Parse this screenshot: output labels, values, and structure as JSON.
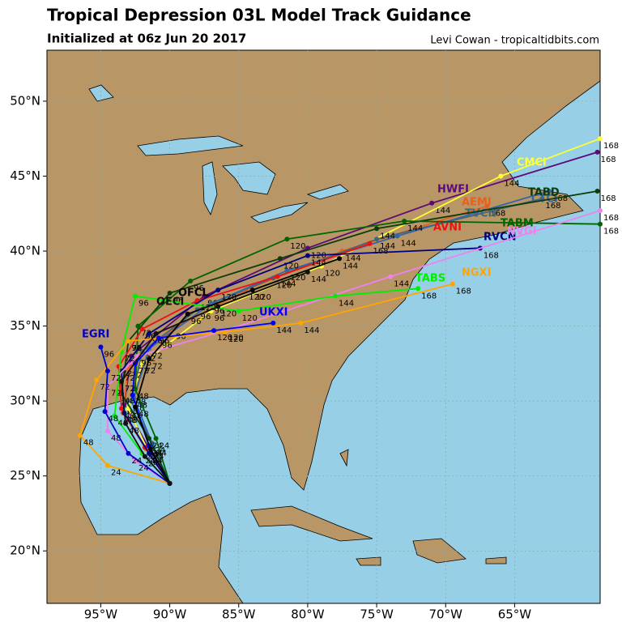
{
  "chart_data": {
    "type": "track-map",
    "title": "Tropical Depression 03L Model Track Guidance",
    "subtitle": "Initialized at 06z Jun 20 2017",
    "credit": "Levi Cowan - tropicaltidbits.com",
    "xlim": [
      -98.9,
      -58.8
    ],
    "ylim": [
      16.5,
      53.4
    ],
    "xticks": [
      {
        "value": -95,
        "label": "95°W"
      },
      {
        "value": -90,
        "label": "90°W"
      },
      {
        "value": -85,
        "label": "85°W"
      },
      {
        "value": -80,
        "label": "80°W"
      },
      {
        "value": -75,
        "label": "75°W"
      },
      {
        "value": -70,
        "label": "70°W"
      },
      {
        "value": -65,
        "label": "65°W"
      }
    ],
    "yticks": [
      {
        "value": 20,
        "label": "20°N"
      },
      {
        "value": 25,
        "label": "25°N"
      },
      {
        "value": 30,
        "label": "30°N"
      },
      {
        "value": 35,
        "label": "35°N"
      },
      {
        "value": 40,
        "label": "40°N"
      },
      {
        "value": 45,
        "label": "45°N"
      },
      {
        "value": 50,
        "label": "50°N"
      }
    ],
    "grid": true,
    "hours": [
      0,
      24,
      48,
      72,
      96,
      120,
      144,
      168
    ],
    "series": [
      {
        "name": "HWFI",
        "color": "#5c0a7a",
        "x": [
          -90,
          -91.6,
          -93.3,
          -92.8,
          -87.5,
          -80,
          -71,
          -59
        ],
        "y": [
          24.5,
          27,
          29.8,
          33,
          37,
          40.2,
          43.2,
          46.6
        ]
      },
      {
        "name": "CMCI",
        "color": "#ffff33",
        "x": [
          -90,
          -91.5,
          -93,
          -92,
          -87,
          -79,
          -66,
          -58.8
        ],
        "y": [
          24.5,
          26.5,
          29.5,
          32.5,
          36,
          39,
          45,
          47.5
        ]
      },
      {
        "name": "AEMI",
        "color": "#e8601c",
        "x": [
          -90,
          -91.7,
          -93.4,
          -93,
          -89.8,
          -84.5,
          -77.5,
          -67
        ],
        "y": [
          24.5,
          26.8,
          29.2,
          32.2,
          34.8,
          37.4,
          40,
          43
        ]
      },
      {
        "name": "TVCN",
        "color": "#446677",
        "x": [
          -90,
          -91.3,
          -92.8,
          -92,
          -88,
          -82.5,
          -75,
          -63
        ],
        "y": [
          24.5,
          27.2,
          30,
          33.3,
          36.1,
          38.2,
          40.8,
          43.5
        ]
      },
      {
        "name": "CTCI",
        "color": "#3366aa",
        "x": [
          -90,
          -91.2,
          -92.6,
          -91.5,
          -87,
          -81.5,
          -73.5,
          -62.5
        ],
        "y": [
          24.5,
          27,
          30.2,
          33.5,
          36.5,
          38.7,
          41,
          44
        ]
      },
      {
        "name": "TABD",
        "color": "#0b3d0b",
        "x": [
          -90,
          -91.5,
          -93.5,
          -93,
          -90,
          -82,
          -75,
          -59
        ],
        "y": [
          24.5,
          27.5,
          30.5,
          34,
          37.2,
          39.5,
          41.5,
          44
        ]
      },
      {
        "name": "TABM",
        "color": "#006400",
        "x": [
          -90,
          -91,
          -92.5,
          -92.3,
          -88.5,
          -81.5,
          -73,
          -58.8
        ],
        "y": [
          24.5,
          27.5,
          30.8,
          35,
          38,
          40.8,
          42,
          41.8
        ]
      },
      {
        "name": "AVNI",
        "color": "#ee1111",
        "x": [
          -90,
          -91.8,
          -93.5,
          -93.7,
          -92,
          -88,
          -82.2,
          -75.5
        ],
        "y": [
          24.5,
          26.9,
          29.5,
          32.3,
          34.8,
          36.7,
          38.3,
          40.5
        ]
      },
      {
        "name": "RVCN",
        "color": "#000080",
        "x": [
          -90,
          -91.5,
          -93.3,
          -93.5,
          -91.5,
          -86.5,
          -80,
          -67.5
        ],
        "y": [
          24.5,
          26.5,
          29.2,
          32,
          34.5,
          37.4,
          39.7,
          40.2
        ]
      },
      {
        "name": "NVGI",
        "color": "#ee82ee",
        "x": [
          -90,
          -92.5,
          -94.5,
          -94.5,
          -92.3,
          -86,
          -74,
          -58.8
        ],
        "y": [
          24.5,
          26,
          28,
          31,
          33,
          34.7,
          38.3,
          42.7
        ]
      },
      {
        "name": "TABS",
        "color": "#00ee00",
        "x": [
          -90,
          -92,
          -94,
          -93.5,
          -92.5,
          -85,
          -78,
          -72
        ],
        "y": [
          24.5,
          26.5,
          29,
          33.3,
          37,
          36,
          37,
          37.5
        ]
      },
      {
        "name": "NGXI",
        "color": "#ffa500",
        "x": [
          -90,
          -94.5,
          -96.5,
          -95.3,
          -93,
          -86,
          -80.5,
          -69.5
        ],
        "y": [
          24.5,
          25.7,
          27.7,
          31.4,
          34,
          34.6,
          35.2,
          37.8
        ]
      },
      {
        "name": "UKXI",
        "color": "#0000ff",
        "x": [
          -90,
          -91.5,
          -92.7,
          -92.5,
          -90.8,
          -86.8,
          -82.5
        ],
        "y": [
          24.5,
          27,
          30.4,
          32.5,
          34.2,
          34.7,
          35.2
        ]
      },
      {
        "name": "EGRI",
        "color": "#0000cc",
        "x": [
          -90,
          -93,
          -94.7,
          -94.5,
          -95
        ],
        "y": [
          24.5,
          26.5,
          29.3,
          32,
          33.6
        ]
      },
      {
        "name": "OFCL",
        "color": "#000000",
        "x": [
          -90,
          -91.4,
          -92.5,
          -91.5,
          -88.7,
          -84,
          -77.7
        ],
        "y": [
          24.5,
          26.8,
          29.6,
          32.8,
          35.8,
          37.4,
          39.5
        ]
      },
      {
        "name": "OECI",
        "color": "#111111",
        "x": [
          -90,
          -91.8,
          -93.2,
          -93.5,
          -91,
          -86.5,
          -80
        ],
        "y": [
          24.5,
          26.3,
          28.5,
          31.3,
          34.5,
          36.3,
          38.6
        ]
      }
    ]
  }
}
